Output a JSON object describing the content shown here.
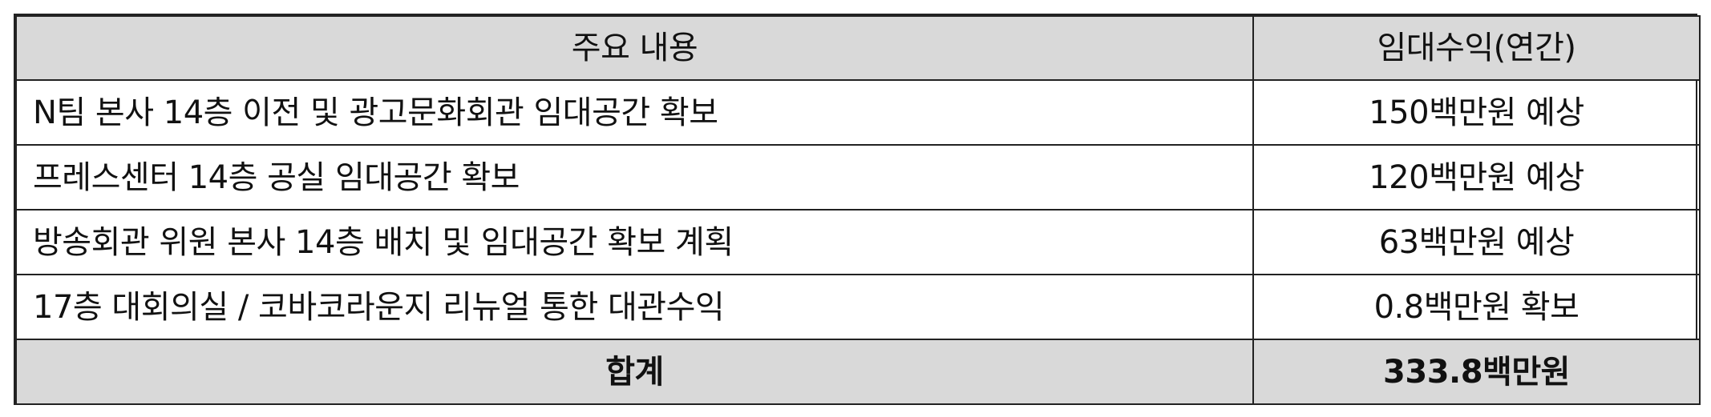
{
  "table": {
    "headers": [
      "주요 내용",
      "임대수익(연간)"
    ],
    "rows": [
      {
        "content": "N팀 본사 14층 이전 및 광고문화회관 임대공간 확보",
        "revenue": "150백만원 예상"
      },
      {
        "content": "프레스센터 14층 공실 임대공간 확보",
        "revenue": "120백만원 예상"
      },
      {
        "content": "방송회관 위원 본사 14층 배치 및 임대공간 확보 계획",
        "revenue": "63백만원 예상"
      },
      {
        "content": "17층 대회의실 / 코바코라운지 리뉴얼 통한 대관수익",
        "revenue": "0.8백만원 확보"
      }
    ],
    "total": {
      "label": "합계",
      "value": "333.8백만원"
    }
  }
}
